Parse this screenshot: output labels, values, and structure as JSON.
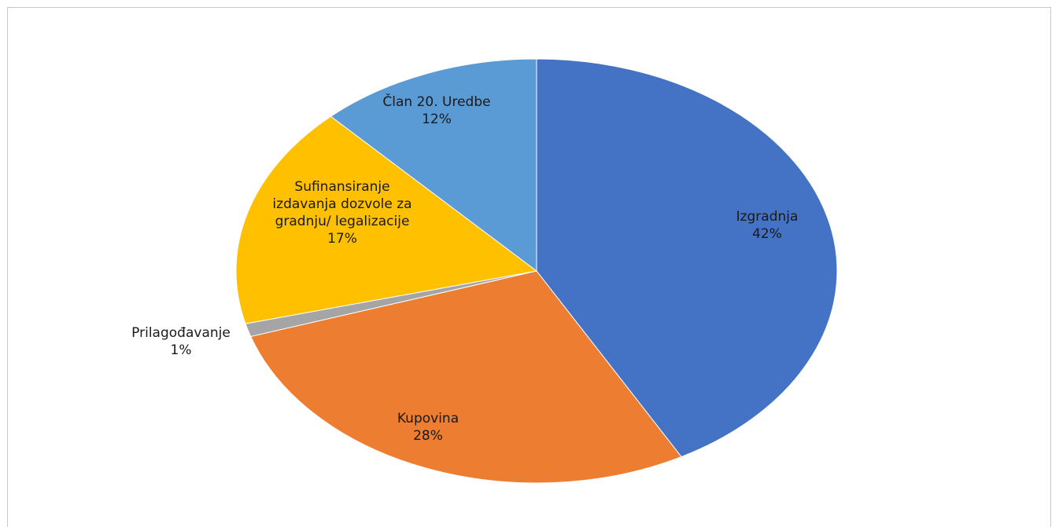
{
  "chart_data": {
    "type": "pie",
    "slices": [
      {
        "name": "Izgradnja",
        "label_lines": [
          "Izgradnja"
        ],
        "value": 42,
        "value_label": "42%",
        "color": "#4472C4"
      },
      {
        "name": "Kupovina",
        "label_lines": [
          "Kupovina"
        ],
        "value": 28,
        "value_label": "28%",
        "color": "#ED7D31"
      },
      {
        "name": "Prilagođavanje",
        "label_lines": [
          "Prilagođavanje"
        ],
        "value": 1,
        "value_label": "1%",
        "color": "#A5A5A5"
      },
      {
        "name": "Sufinansiranje izdavanja dozvole za gradnju/  legalizacije",
        "label_lines": [
          "Sufinansiranje",
          "izdavanja dozvole za",
          "gradnju/  legalizacije"
        ],
        "value": 17,
        "value_label": "17%",
        "color": "#FFC000"
      },
      {
        "name": "Član 20. Uredbe",
        "label_lines": [
          "Član 20. Uredbe"
        ],
        "value": 12,
        "value_label": "12%",
        "color": "#5B9BD5"
      }
    ],
    "start_angle_deg": 0,
    "direction": "clockwise",
    "legend": "none",
    "data_labels": "category name and percentage"
  }
}
